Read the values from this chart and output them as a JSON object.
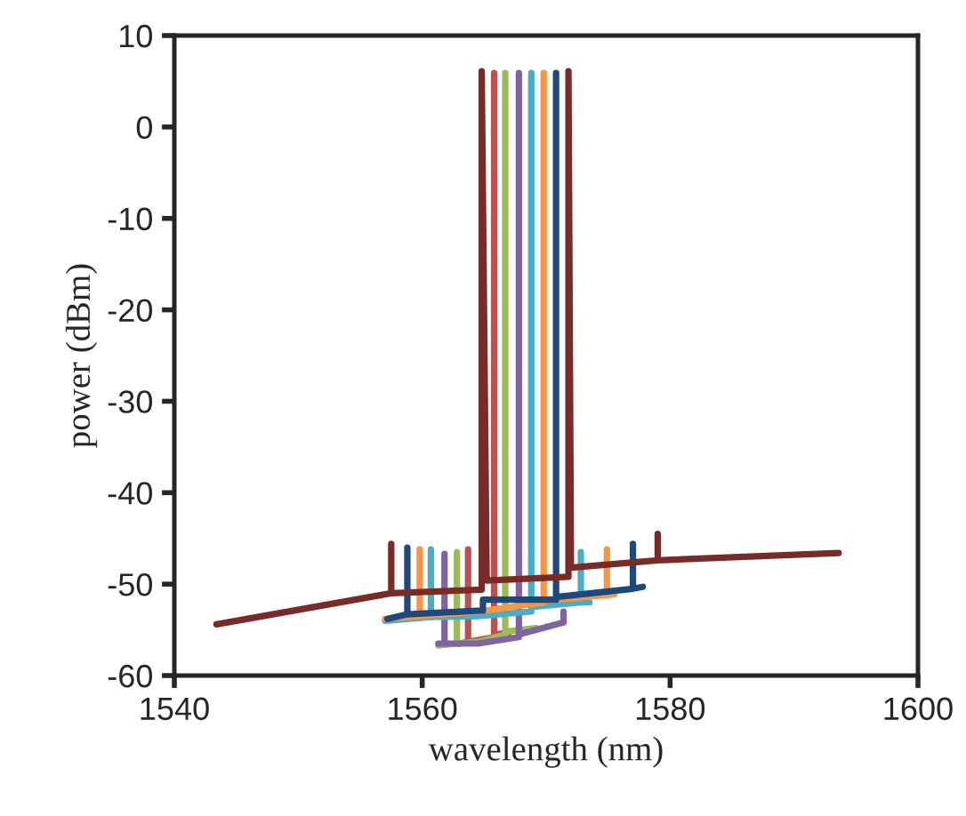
{
  "chart_data": {
    "type": "line",
    "xlabel": "wavelength (nm)",
    "ylabel": "power (dBm)",
    "xlim": [
      1540,
      1600
    ],
    "xticks": [
      1540,
      1560,
      1580,
      1600
    ],
    "ylim": [
      -60,
      10
    ],
    "yticks": [
      -60,
      -50,
      -40,
      -30,
      -20,
      -10,
      0,
      10
    ],
    "grid": false,
    "marker": "none",
    "line_style": "solid",
    "series": [
      {
        "color": "#c0504d",
        "x": [
          1563,
          1563.7,
          1563.7,
          1563.7,
          1565.8,
          1565.8,
          1565.8,
          1567
        ],
        "values": [
          -56.5,
          -56.3,
          -46.2,
          -56.3,
          -55.8,
          5.9,
          -55.5,
          -55.3
        ]
      },
      {
        "color": "#9bbb59",
        "x": [
          1561.3,
          1562.8,
          1562.8,
          1562.8,
          1564.6,
          1566.7,
          1566.7,
          1566.7,
          1569.2
        ],
        "values": [
          -56.7,
          -56.5,
          -46.5,
          -56.5,
          -56.3,
          -55.5,
          5.9,
          -55.2,
          -54.8
        ]
      },
      {
        "color": "#8064a2",
        "x": [
          1561.3,
          1561.8,
          1561.8,
          1561.8,
          1564.5,
          1567.8,
          1567.8,
          1567.8,
          1571.4,
          1571.4
        ],
        "values": [
          -56.5,
          -56.5,
          -46.7,
          -56.5,
          -56.5,
          -55.8,
          5.9,
          -55.5,
          -54.2,
          -53
        ]
      },
      {
        "color": "#4bacc6",
        "x": [
          1557,
          1560.7,
          1560.7,
          1560.7,
          1564.5,
          1568.8,
          1568.8,
          1568.8,
          1572.8,
          1572.8,
          1572.8,
          1573.5
        ],
        "values": [
          -54,
          -53.6,
          -46.2,
          -53.6,
          -53.5,
          -53,
          5.9,
          -52.5,
          -52,
          -46.5,
          -52,
          -52
        ]
      },
      {
        "color": "#f79646",
        "x": [
          1557,
          1559.8,
          1559.8,
          1559.8,
          1564.5,
          1569.8,
          1569.8,
          1569.8,
          1574.9,
          1574.9,
          1574.9,
          1575.5
        ],
        "values": [
          -53.8,
          -53.5,
          -46.2,
          -53.5,
          -53,
          -52,
          5.9,
          -51.8,
          -51.2,
          -46.2,
          -51.2,
          -51.1
        ]
      },
      {
        "color": "#1f497d",
        "x": [
          1557.2,
          1558.8,
          1558.8,
          1558.8,
          1564.7,
          1564.9,
          1564.9,
          1570.8,
          1570.8,
          1570.8,
          1577,
          1577,
          1577,
          1577.8
        ],
        "values": [
          -53.8,
          -53.3,
          -46,
          -53.3,
          -52.9,
          -52.9,
          -51.7,
          -51.7,
          5.9,
          -51.4,
          -50.5,
          -45.6,
          -50.5,
          -50.3
        ]
      },
      {
        "color": "#772c2a",
        "x": [
          1543.4,
          1557.5,
          1557.5,
          1557.5,
          1564.8,
          1564.8,
          1565.2,
          1571.8,
          1571.8,
          1572,
          1579,
          1579,
          1579,
          1593.6
        ],
        "values": [
          -54.4,
          -51,
          -45.6,
          -51,
          -50.6,
          6.1,
          -49.6,
          -49.2,
          6.1,
          -48.2,
          -47.4,
          -44.5,
          -47.4,
          -46.6
        ]
      }
    ]
  }
}
